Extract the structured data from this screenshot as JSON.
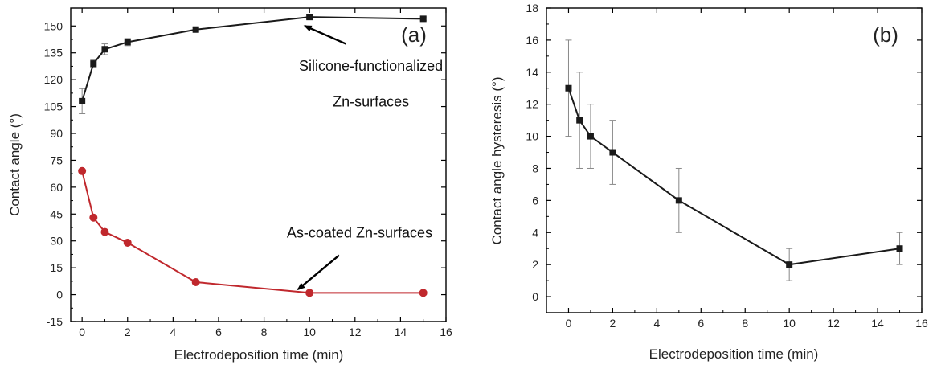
{
  "chart_data": [
    {
      "panel_label": "(a)",
      "type": "line",
      "xlabel": "Electrodeposition time (min)",
      "ylabel": "Contact angle (°)",
      "xlim": [
        -0.5,
        16
      ],
      "ylim": [
        -15,
        160
      ],
      "xticks": [
        0,
        2,
        4,
        6,
        8,
        10,
        12,
        14,
        16
      ],
      "yticks": [
        -15,
        0,
        15,
        30,
        45,
        60,
        75,
        90,
        105,
        120,
        135,
        150
      ],
      "grid": false,
      "series": [
        {
          "color": "#1a1a1a",
          "marker": "square",
          "points": [
            {
              "x": 0,
              "y": 108,
              "err": 7
            },
            {
              "x": 0.5,
              "y": 129,
              "err": 2
            },
            {
              "x": 1,
              "y": 137,
              "err": 3
            },
            {
              "x": 2,
              "y": 141,
              "err": 2
            },
            {
              "x": 5,
              "y": 148,
              "err": 1
            },
            {
              "x": 10,
              "y": 155,
              "err": 1
            },
            {
              "x": 15,
              "y": 154,
              "err": 1
            }
          ]
        },
        {
          "color": "#c0282d",
          "marker": "circle",
          "points": [
            {
              "x": 0,
              "y": 69
            },
            {
              "x": 0.5,
              "y": 43
            },
            {
              "x": 1,
              "y": 35
            },
            {
              "x": 2,
              "y": 29
            },
            {
              "x": 5,
              "y": 7
            },
            {
              "x": 10,
              "y": 1
            },
            {
              "x": 15,
              "y": 1
            }
          ]
        }
      ],
      "annotations": [
        {
          "lines": [
            "Silicone-functionalized",
            "Zn-surfaces"
          ],
          "text_x": 12.7,
          "text_y": [
            125,
            105
          ],
          "arrow_from": [
            11.6,
            140
          ],
          "arrow_to": [
            9.8,
            150
          ]
        },
        {
          "lines": [
            "As-coated Zn-surfaces"
          ],
          "text_x": 12.2,
          "text_y": [
            32
          ],
          "arrow_from": [
            11.3,
            22
          ],
          "arrow_to": [
            9.5,
            3
          ]
        }
      ]
    },
    {
      "panel_label": "(b)",
      "type": "line",
      "xlabel": "Electrodeposition time (min)",
      "ylabel": "Contact angle hysteresis (°)",
      "xlim": [
        -1,
        16
      ],
      "ylim": [
        -1,
        18
      ],
      "xticks": [
        0,
        2,
        4,
        6,
        8,
        10,
        12,
        14,
        16
      ],
      "yticks": [
        0,
        2,
        4,
        6,
        8,
        10,
        12,
        14,
        16,
        18
      ],
      "grid": false,
      "series": [
        {
          "color": "#1a1a1a",
          "marker": "square",
          "points": [
            {
              "x": 0,
              "y": 13,
              "err": 3
            },
            {
              "x": 0.5,
              "y": 11,
              "err": 3
            },
            {
              "x": 1,
              "y": 10,
              "err": 2
            },
            {
              "x": 2,
              "y": 9,
              "err": 2
            },
            {
              "x": 5,
              "y": 6,
              "err": 2
            },
            {
              "x": 10,
              "y": 2,
              "err": 1
            },
            {
              "x": 15,
              "y": 3,
              "err": 1
            }
          ]
        }
      ]
    }
  ]
}
